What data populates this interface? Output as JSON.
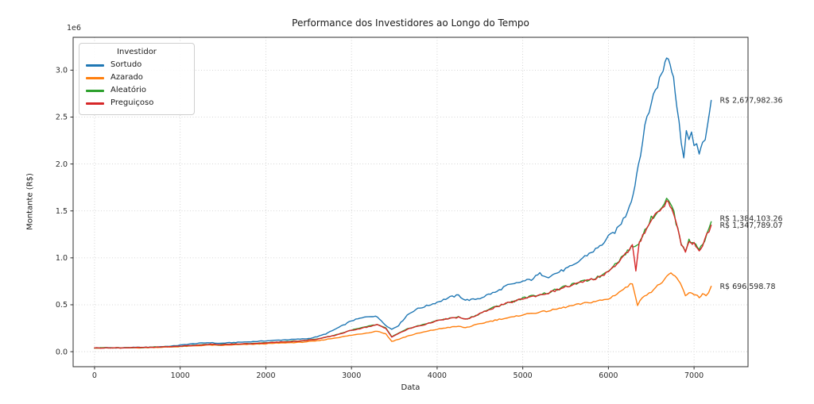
{
  "chart_data": {
    "type": "line",
    "title": "Performance dos Investidores ao Longo do Tempo",
    "xlabel": "Data",
    "ylabel": "Montante (R$)",
    "y_offset_text": "1e6",
    "grid": true,
    "background_color": "#ffffff",
    "grid_color": "#c9c9c9",
    "spine_color": "#2f2f2f",
    "tick_label_color": "#2b2b2b",
    "xlim": [
      -250,
      7630
    ],
    "ylim": [
      -160000,
      3350000
    ],
    "x_tick_values": [
      0,
      1000,
      2000,
      3000,
      4000,
      5000,
      6000,
      7000
    ],
    "x_tick_labels": [
      "0",
      "1000",
      "2000",
      "3000",
      "4000",
      "5000",
      "6000",
      "7000"
    ],
    "y_tick_values": [
      0,
      500000,
      1000000,
      1500000,
      2000000,
      2500000,
      3000000
    ],
    "y_tick_labels": [
      "0.0",
      "0.5",
      "1.0",
      "1.5",
      "2.0",
      "2.5",
      "3.0"
    ],
    "legend": {
      "title": "Investidor",
      "position": "upper left"
    },
    "series": [
      {
        "name": "Sortudo",
        "color": "#1f77b4",
        "final_value_label": "R$ 2,677,982.36",
        "points": [
          [
            0,
            40000
          ],
          [
            150,
            42000
          ],
          [
            300,
            41000
          ],
          [
            450,
            45000
          ],
          [
            600,
            46000
          ],
          [
            750,
            52000
          ],
          [
            900,
            60000
          ],
          [
            1000,
            70000
          ],
          [
            1100,
            80000
          ],
          [
            1250,
            92000
          ],
          [
            1350,
            97000
          ],
          [
            1450,
            88000
          ],
          [
            1600,
            97000
          ],
          [
            1750,
            103000
          ],
          [
            1900,
            110000
          ],
          [
            2050,
            118000
          ],
          [
            2200,
            125000
          ],
          [
            2350,
            132000
          ],
          [
            2500,
            140000
          ],
          [
            2600,
            160000
          ],
          [
            2700,
            190000
          ],
          [
            2800,
            235000
          ],
          [
            2900,
            280000
          ],
          [
            3000,
            330000
          ],
          [
            3100,
            355000
          ],
          [
            3200,
            375000
          ],
          [
            3280,
            380000
          ],
          [
            3350,
            330000
          ],
          [
            3420,
            265000
          ],
          [
            3470,
            240000
          ],
          [
            3550,
            280000
          ],
          [
            3650,
            390000
          ],
          [
            3750,
            450000
          ],
          [
            3850,
            480000
          ],
          [
            3950,
            510000
          ],
          [
            4050,
            545000
          ],
          [
            4150,
            580000
          ],
          [
            4250,
            600000
          ],
          [
            4330,
            550000
          ],
          [
            4420,
            555000
          ],
          [
            4500,
            570000
          ],
          [
            4600,
            610000
          ],
          [
            4700,
            640000
          ],
          [
            4800,
            700000
          ],
          [
            4900,
            720000
          ],
          [
            5000,
            750000
          ],
          [
            5100,
            770000
          ],
          [
            5200,
            830000
          ],
          [
            5300,
            800000
          ],
          [
            5400,
            840000
          ],
          [
            5500,
            880000
          ],
          [
            5600,
            920000
          ],
          [
            5700,
            1000000
          ],
          [
            5800,
            1060000
          ],
          [
            5900,
            1120000
          ],
          [
            6000,
            1220000
          ],
          [
            6100,
            1300000
          ],
          [
            6200,
            1450000
          ],
          [
            6290,
            1680000
          ],
          [
            6350,
            2000000
          ],
          [
            6450,
            2500000
          ],
          [
            6550,
            2800000
          ],
          [
            6620,
            2950000
          ],
          [
            6680,
            3150000
          ],
          [
            6720,
            3100000
          ],
          [
            6760,
            2950000
          ],
          [
            6800,
            2600000
          ],
          [
            6850,
            2250000
          ],
          [
            6880,
            2100000
          ],
          [
            6910,
            2350000
          ],
          [
            6940,
            2250000
          ],
          [
            6970,
            2300000
          ],
          [
            7000,
            2200000
          ],
          [
            7030,
            2250000
          ],
          [
            7060,
            2100000
          ],
          [
            7100,
            2200000
          ],
          [
            7130,
            2250000
          ],
          [
            7160,
            2450000
          ],
          [
            7200,
            2677982.36
          ]
        ]
      },
      {
        "name": "Azarado",
        "color": "#ff7f0e",
        "final_value_label": "R$ 696,598.78",
        "points": [
          [
            0,
            40000
          ],
          [
            300,
            40000
          ],
          [
            600,
            43000
          ],
          [
            900,
            50000
          ],
          [
            1000,
            55000
          ],
          [
            1200,
            63000
          ],
          [
            1350,
            72000
          ],
          [
            1450,
            66000
          ],
          [
            1600,
            72000
          ],
          [
            1800,
            78000
          ],
          [
            2000,
            85000
          ],
          [
            2200,
            93000
          ],
          [
            2400,
            100000
          ],
          [
            2600,
            115000
          ],
          [
            2800,
            145000
          ],
          [
            3000,
            175000
          ],
          [
            3150,
            195000
          ],
          [
            3300,
            220000
          ],
          [
            3400,
            190000
          ],
          [
            3470,
            110000
          ],
          [
            3560,
            135000
          ],
          [
            3650,
            165000
          ],
          [
            3750,
            190000
          ],
          [
            3850,
            210000
          ],
          [
            3950,
            230000
          ],
          [
            4100,
            255000
          ],
          [
            4250,
            270000
          ],
          [
            4330,
            255000
          ],
          [
            4450,
            285000
          ],
          [
            4600,
            320000
          ],
          [
            4750,
            350000
          ],
          [
            4900,
            370000
          ],
          [
            5000,
            395000
          ],
          [
            5150,
            415000
          ],
          [
            5300,
            435000
          ],
          [
            5450,
            465000
          ],
          [
            5600,
            495000
          ],
          [
            5750,
            520000
          ],
          [
            5900,
            545000
          ],
          [
            6000,
            560000
          ],
          [
            6100,
            620000
          ],
          [
            6200,
            680000
          ],
          [
            6280,
            730000
          ],
          [
            6340,
            500000
          ],
          [
            6420,
            600000
          ],
          [
            6500,
            640000
          ],
          [
            6600,
            720000
          ],
          [
            6680,
            790000
          ],
          [
            6730,
            830000
          ],
          [
            6780,
            800000
          ],
          [
            6820,
            760000
          ],
          [
            6860,
            680000
          ],
          [
            6900,
            600000
          ],
          [
            6940,
            630000
          ],
          [
            6980,
            620000
          ],
          [
            7020,
            610000
          ],
          [
            7060,
            575000
          ],
          [
            7100,
            610000
          ],
          [
            7140,
            590000
          ],
          [
            7170,
            640000
          ],
          [
            7200,
            696598.78
          ]
        ]
      },
      {
        "name": "Aleatório",
        "color": "#2ca02c",
        "final_value_label": "R$ 1,384,103.26",
        "points": [
          [
            0,
            40000
          ],
          [
            300,
            42000
          ],
          [
            600,
            46000
          ],
          [
            900,
            55000
          ],
          [
            1000,
            60000
          ],
          [
            1200,
            70000
          ],
          [
            1350,
            80000
          ],
          [
            1450,
            74000
          ],
          [
            1600,
            80000
          ],
          [
            1800,
            86000
          ],
          [
            2000,
            95000
          ],
          [
            2200,
            105000
          ],
          [
            2400,
            115000
          ],
          [
            2600,
            135000
          ],
          [
            2800,
            175000
          ],
          [
            3000,
            230000
          ],
          [
            3150,
            260000
          ],
          [
            3300,
            290000
          ],
          [
            3400,
            250000
          ],
          [
            3470,
            160000
          ],
          [
            3560,
            200000
          ],
          [
            3650,
            240000
          ],
          [
            3750,
            270000
          ],
          [
            3850,
            290000
          ],
          [
            3950,
            320000
          ],
          [
            4100,
            350000
          ],
          [
            4250,
            370000
          ],
          [
            4330,
            345000
          ],
          [
            4450,
            385000
          ],
          [
            4600,
            450000
          ],
          [
            4750,
            500000
          ],
          [
            4900,
            540000
          ],
          [
            5000,
            570000
          ],
          [
            5150,
            600000
          ],
          [
            5300,
            630000
          ],
          [
            5450,
            680000
          ],
          [
            5600,
            720000
          ],
          [
            5750,
            760000
          ],
          [
            5900,
            800000
          ],
          [
            6000,
            870000
          ],
          [
            6100,
            950000
          ],
          [
            6200,
            1050000
          ],
          [
            6290,
            1130000
          ],
          [
            6330,
            1120000
          ],
          [
            6400,
            1250000
          ],
          [
            6500,
            1420000
          ],
          [
            6600,
            1520000
          ],
          [
            6680,
            1620000
          ],
          [
            6740,
            1560000
          ],
          [
            6790,
            1380000
          ],
          [
            6850,
            1160000
          ],
          [
            6900,
            1080000
          ],
          [
            6940,
            1180000
          ],
          [
            6980,
            1160000
          ],
          [
            7020,
            1150000
          ],
          [
            7060,
            1100000
          ],
          [
            7100,
            1130000
          ],
          [
            7150,
            1250000
          ],
          [
            7200,
            1384103.26
          ]
        ]
      },
      {
        "name": "Preguiçoso",
        "color": "#d62728",
        "final_value_label": "R$ 1,347,789.07",
        "points": [
          [
            0,
            40000
          ],
          [
            300,
            41000
          ],
          [
            600,
            45000
          ],
          [
            900,
            54000
          ],
          [
            1000,
            59000
          ],
          [
            1200,
            69000
          ],
          [
            1350,
            79000
          ],
          [
            1450,
            73000
          ],
          [
            1600,
            79000
          ],
          [
            1800,
            85000
          ],
          [
            2000,
            94000
          ],
          [
            2200,
            104000
          ],
          [
            2400,
            113000
          ],
          [
            2600,
            133000
          ],
          [
            2800,
            172000
          ],
          [
            3000,
            227000
          ],
          [
            3150,
            257000
          ],
          [
            3300,
            287000
          ],
          [
            3400,
            247000
          ],
          [
            3470,
            158000
          ],
          [
            3560,
            197000
          ],
          [
            3650,
            237000
          ],
          [
            3750,
            267000
          ],
          [
            3850,
            287000
          ],
          [
            3950,
            317000
          ],
          [
            4100,
            347000
          ],
          [
            4250,
            367000
          ],
          [
            4330,
            342000
          ],
          [
            4450,
            382000
          ],
          [
            4600,
            447000
          ],
          [
            4750,
            497000
          ],
          [
            4900,
            537000
          ],
          [
            5000,
            565000
          ],
          [
            5150,
            595000
          ],
          [
            5300,
            625000
          ],
          [
            5450,
            675000
          ],
          [
            5600,
            715000
          ],
          [
            5750,
            755000
          ],
          [
            5900,
            795000
          ],
          [
            6000,
            860000
          ],
          [
            6100,
            940000
          ],
          [
            6200,
            1040000
          ],
          [
            6280,
            1130000
          ],
          [
            6320,
            860000
          ],
          [
            6360,
            1150000
          ],
          [
            6400,
            1240000
          ],
          [
            6500,
            1410000
          ],
          [
            6600,
            1510000
          ],
          [
            6680,
            1600000
          ],
          [
            6740,
            1545000
          ],
          [
            6790,
            1370000
          ],
          [
            6850,
            1150000
          ],
          [
            6900,
            1070000
          ],
          [
            6940,
            1170000
          ],
          [
            6980,
            1150000
          ],
          [
            7020,
            1140000
          ],
          [
            7060,
            1090000
          ],
          [
            7100,
            1120000
          ],
          [
            7150,
            1240000
          ],
          [
            7200,
            1347789.07
          ]
        ]
      }
    ],
    "annotations": [
      {
        "text": "R$ 2,677,982.36",
        "x": 7300,
        "value": 2677982.36
      },
      {
        "text": "R$ 1,384,103.26",
        "x": 7300,
        "value": 1420000
      },
      {
        "text": "R$ 1,347,789.07",
        "x": 7300,
        "value": 1347789.07
      },
      {
        "text": "R$ 696,598.78",
        "x": 7300,
        "value": 696598.78
      }
    ]
  }
}
